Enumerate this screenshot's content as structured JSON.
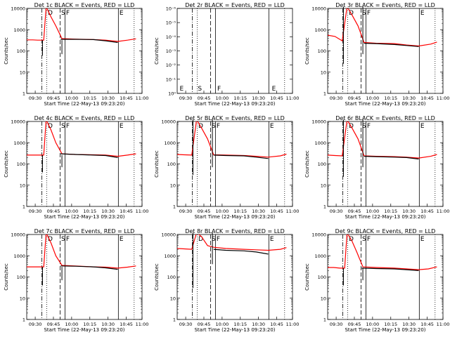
{
  "chart_data": {
    "type": "line",
    "panels": [
      {
        "title": "Det 1c BLACK = Events, RED = LLD",
        "empty": false,
        "ymax_exp": 4,
        "red": [
          [
            0,
            330
          ],
          [
            5,
            330
          ],
          [
            9,
            320
          ],
          [
            14,
            320
          ],
          [
            16,
            12000
          ],
          [
            20,
            4000
          ],
          [
            24,
            1500
          ],
          [
            29,
            380
          ],
          [
            40,
            360
          ],
          [
            55,
            340
          ],
          [
            65,
            320
          ],
          [
            75,
            280
          ],
          [
            83,
            320
          ],
          [
            90,
            370
          ]
        ],
        "black": [
          [
            28,
            350
          ],
          [
            40,
            350
          ],
          [
            55,
            340
          ],
          [
            65,
            300
          ],
          [
            75,
            250
          ]
        ],
        "dips": [
          [
            13,
            60
          ],
          [
            29,
            70
          ]
        ]
      },
      {
        "title": "Det 2r BLACK = Events, RED = LLD",
        "empty": true,
        "ymax_exp": -6,
        "red": [],
        "black": [],
        "dips": []
      },
      {
        "title": "Det 3r BLACK = Events, RED = LLD",
        "empty": false,
        "ymax_exp": 4,
        "red": [
          [
            0,
            550
          ],
          [
            6,
            480
          ],
          [
            12,
            300
          ],
          [
            16,
            12000
          ],
          [
            20,
            5000
          ],
          [
            25,
            1500
          ],
          [
            30,
            250
          ],
          [
            40,
            230
          ],
          [
            55,
            220
          ],
          [
            65,
            190
          ],
          [
            75,
            170
          ],
          [
            85,
            210
          ],
          [
            90,
            260
          ]
        ],
        "black": [
          [
            30,
            230
          ],
          [
            40,
            220
          ],
          [
            55,
            200
          ],
          [
            65,
            180
          ],
          [
            75,
            160
          ]
        ],
        "dips": [
          [
            13,
            25
          ],
          [
            29,
            70
          ]
        ]
      },
      {
        "title": "Det 4c BLACK = Events, RED = LLD",
        "empty": false,
        "ymax_exp": 4,
        "red": [
          [
            0,
            260
          ],
          [
            5,
            260
          ],
          [
            10,
            260
          ],
          [
            14,
            260
          ],
          [
            16,
            12000
          ],
          [
            20,
            4000
          ],
          [
            24,
            1000
          ],
          [
            29,
            300
          ],
          [
            40,
            280
          ],
          [
            55,
            270
          ],
          [
            65,
            260
          ],
          [
            75,
            230
          ],
          [
            83,
            260
          ],
          [
            90,
            300
          ]
        ],
        "black": [
          [
            28,
            300
          ],
          [
            40,
            280
          ],
          [
            55,
            260
          ],
          [
            65,
            250
          ],
          [
            75,
            200
          ]
        ],
        "dips": [
          [
            13,
            40
          ],
          [
            29,
            70
          ]
        ]
      },
      {
        "title": "Det 5r BLACK = Events, RED = LLD",
        "empty": false,
        "ymax_exp": 4,
        "red": [
          [
            0,
            280
          ],
          [
            6,
            270
          ],
          [
            12,
            260
          ],
          [
            16,
            12000
          ],
          [
            20,
            5000
          ],
          [
            25,
            1500
          ],
          [
            30,
            270
          ],
          [
            40,
            260
          ],
          [
            55,
            250
          ],
          [
            65,
            230
          ],
          [
            75,
            210
          ],
          [
            85,
            240
          ],
          [
            90,
            290
          ]
        ],
        "black": [
          [
            30,
            260
          ],
          [
            40,
            250
          ],
          [
            55,
            240
          ],
          [
            65,
            210
          ],
          [
            75,
            180
          ]
        ],
        "dips": [
          [
            13,
            30
          ],
          [
            29,
            70
          ]
        ]
      },
      {
        "title": "Det 6r BLACK = Events, RED = LLD",
        "empty": false,
        "ymax_exp": 4,
        "red": [
          [
            0,
            260
          ],
          [
            6,
            250
          ],
          [
            12,
            240
          ],
          [
            16,
            12000
          ],
          [
            20,
            5000
          ],
          [
            25,
            1500
          ],
          [
            30,
            240
          ],
          [
            40,
            230
          ],
          [
            55,
            220
          ],
          [
            65,
            210
          ],
          [
            75,
            190
          ],
          [
            85,
            230
          ],
          [
            90,
            280
          ]
        ],
        "black": [
          [
            30,
            230
          ],
          [
            40,
            220
          ],
          [
            55,
            210
          ],
          [
            65,
            200
          ],
          [
            75,
            170
          ]
        ],
        "dips": [
          [
            13,
            25
          ],
          [
            29,
            70
          ]
        ]
      },
      {
        "title": "Det 7c BLACK = Events, RED = LLD",
        "empty": false,
        "ymax_exp": 4,
        "red": [
          [
            0,
            300
          ],
          [
            5,
            300
          ],
          [
            10,
            300
          ],
          [
            14,
            300
          ],
          [
            16,
            12000
          ],
          [
            20,
            4000
          ],
          [
            24,
            1000
          ],
          [
            29,
            350
          ],
          [
            40,
            330
          ],
          [
            55,
            300
          ],
          [
            65,
            290
          ],
          [
            75,
            260
          ],
          [
            83,
            290
          ],
          [
            90,
            330
          ]
        ],
        "black": [
          [
            28,
            330
          ],
          [
            40,
            320
          ],
          [
            55,
            300
          ],
          [
            65,
            270
          ],
          [
            75,
            230
          ]
        ],
        "dips": [
          [
            13,
            40
          ],
          [
            29,
            70
          ]
        ]
      },
      {
        "title": "Det 8r BLACK = Events, RED = LLD",
        "empty": false,
        "ymax_exp": 4,
        "red": [
          [
            0,
            2200
          ],
          [
            6,
            2100
          ],
          [
            12,
            2000
          ],
          [
            16,
            12000
          ],
          [
            20,
            8000
          ],
          [
            25,
            3000
          ],
          [
            30,
            2500
          ],
          [
            40,
            2200
          ],
          [
            55,
            2000
          ],
          [
            65,
            1900
          ],
          [
            75,
            1800
          ],
          [
            85,
            2000
          ],
          [
            90,
            2400
          ]
        ],
        "black": [
          [
            30,
            2000
          ],
          [
            40,
            1800
          ],
          [
            55,
            1700
          ],
          [
            65,
            1500
          ],
          [
            75,
            1200
          ]
        ],
        "dips": [
          [
            13,
            30
          ],
          [
            29,
            400
          ]
        ]
      },
      {
        "title": "Det 9c BLACK = Events, RED = LLD",
        "empty": false,
        "ymax_exp": 4,
        "red": [
          [
            0,
            280
          ],
          [
            5,
            280
          ],
          [
            10,
            260
          ],
          [
            14,
            260
          ],
          [
            16,
            12000
          ],
          [
            20,
            5000
          ],
          [
            24,
            1500
          ],
          [
            29,
            300
          ],
          [
            40,
            280
          ],
          [
            55,
            260
          ],
          [
            65,
            240
          ],
          [
            75,
            220
          ],
          [
            83,
            240
          ],
          [
            90,
            300
          ]
        ],
        "black": [
          [
            28,
            260
          ],
          [
            40,
            250
          ],
          [
            55,
            240
          ],
          [
            65,
            220
          ],
          [
            75,
            200
          ]
        ],
        "dips": [
          [
            13,
            40
          ],
          [
            29,
            70
          ]
        ]
      }
    ],
    "xlabel": "Start Time (22-May-13 09:23:20)",
    "ylabel": "Counts/sec",
    "xticks": [
      "09:30",
      "09:45",
      "10:00",
      "10:15",
      "10:30",
      "10:45",
      "11:00"
    ],
    "xlim_minutes": [
      0,
      95
    ],
    "xtick_minutes": [
      7,
      22,
      37,
      52,
      67,
      82,
      97
    ],
    "yticks_main": [
      "1",
      "10",
      "100",
      "1000",
      "10000"
    ],
    "yticks_empty": [
      "10⁻⁶",
      "10⁻⁵",
      "10⁻⁴",
      "10⁻³",
      "10⁻²",
      "10⁻¹",
      "10⁰"
    ],
    "ylim_main": [
      1,
      10000
    ],
    "vlines": [
      {
        "minutes": 12.5,
        "style": "dash-dot",
        "letter": ""
      },
      {
        "minutes": 16.5,
        "style": "dotted",
        "letter": "D"
      },
      {
        "minutes": 27.5,
        "style": "dashed",
        "letter": "S"
      },
      {
        "minutes": 31.5,
        "style": "solid",
        "letter": "F"
      },
      {
        "minutes": 75.5,
        "style": "solid",
        "letter": "E"
      },
      {
        "minutes": 88.5,
        "style": "dotted",
        "letter": ""
      }
    ],
    "empty_letters": [
      {
        "minutes": 2,
        "letter": "E"
      },
      {
        "minutes": 17,
        "letter": "S"
      },
      {
        "minutes": 33,
        "letter": "F"
      },
      {
        "minutes": 78,
        "letter": "E"
      }
    ],
    "colors": {
      "events": "#000000",
      "lld": "#ff0000"
    }
  }
}
